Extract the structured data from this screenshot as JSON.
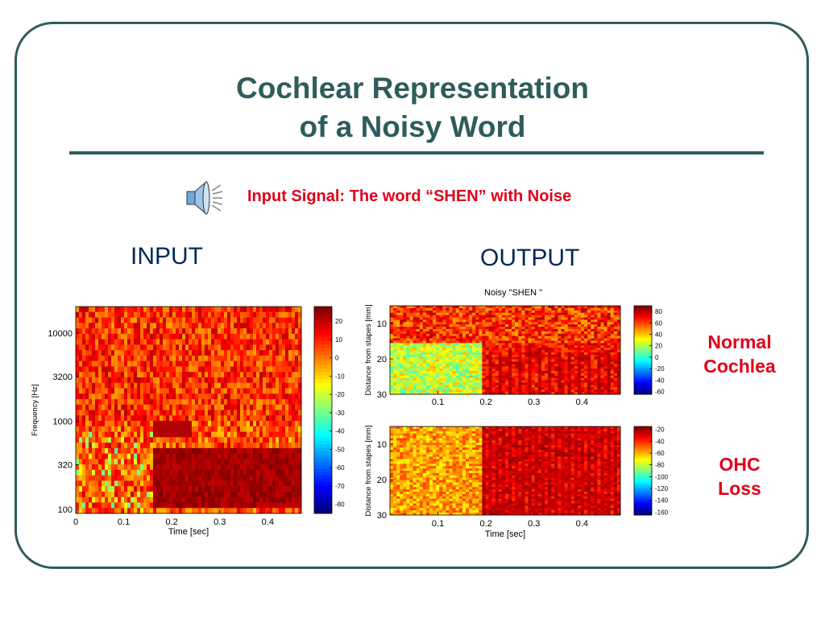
{
  "slide": {
    "title_line1": "Cochlear Representation",
    "title_line2": "of a Noisy Word",
    "subtitle": "Input Signal: The word “SHEN” with Noise",
    "input_label": "INPUT",
    "output_label": "OUTPUT",
    "normal_label_1": "Normal",
    "normal_label_2": "Cochlea",
    "ohc_label_1": "OHC",
    "ohc_label_2": "Loss",
    "speaker_icon": "speaker-icon",
    "frame_color": "#2e5c5c",
    "accent_color": "#e0001a"
  },
  "chart_data": [
    {
      "type": "heatmap",
      "title": "",
      "xlabel": "Time [sec]",
      "ylabel": "Frequency [Hz]",
      "xlim": [
        0,
        0.47
      ],
      "x_ticks": [
        0,
        0.1,
        0.2,
        0.3,
        0.4
      ],
      "x_tick_labels": [
        "0",
        "0.1",
        "0.2",
        "0.3",
        "0.4"
      ],
      "y_scale": "log",
      "y_ticks": [
        100,
        320,
        1000,
        3200,
        10000
      ],
      "y_tick_labels": [
        "100",
        "320",
        "1000",
        "3200",
        "10000"
      ],
      "colorbar": {
        "min": -85,
        "max": 28,
        "ticks": [
          20,
          10,
          0,
          -10,
          -20,
          -30,
          -40,
          -50,
          -60,
          -70,
          -80
        ]
      },
      "word_onset_sec": 0.16
    },
    {
      "type": "heatmap",
      "title": "Noisy \"SHEN \"",
      "xlabel": "",
      "ylabel": "Distance from stapes [mm]",
      "xlim": [
        0,
        0.48
      ],
      "x_ticks": [
        0.1,
        0.2,
        0.3,
        0.4
      ],
      "x_tick_labels": [
        "0.1",
        "0.2",
        "0.3",
        "0.4"
      ],
      "ylim": [
        5,
        30
      ],
      "y_ticks": [
        10,
        20,
        30
      ],
      "y_tick_labels": [
        "10",
        "20",
        "30"
      ],
      "colorbar": {
        "min": -65,
        "max": 90,
        "ticks": [
          80,
          60,
          40,
          20,
          0,
          -20,
          -40,
          -60
        ]
      },
      "word_onset_sec": 0.19
    },
    {
      "type": "heatmap",
      "title": "",
      "xlabel": "Time [sec]",
      "ylabel": "Distance from stapes [mm]",
      "xlim": [
        0,
        0.48
      ],
      "x_ticks": [
        0.1,
        0.2,
        0.3,
        0.4
      ],
      "x_tick_labels": [
        "0.1",
        "0.2",
        "0.3",
        "0.4"
      ],
      "ylim": [
        5,
        30
      ],
      "y_ticks": [
        10,
        20,
        30
      ],
      "y_tick_labels": [
        "10",
        "20",
        "30"
      ],
      "colorbar": {
        "min": -165,
        "max": -15,
        "ticks": [
          -20,
          -40,
          -60,
          -80,
          -100,
          -120,
          -140,
          -160
        ]
      },
      "word_onset_sec": 0.19
    }
  ]
}
